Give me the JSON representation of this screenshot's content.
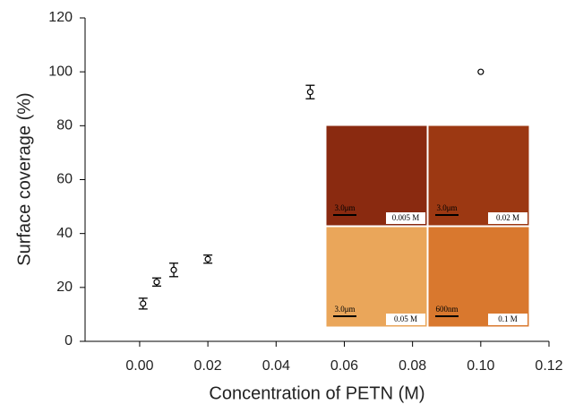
{
  "chart_data": {
    "type": "scatter",
    "xlabel": "Concentration of PETN (M)",
    "ylabel": "Surface coverage (%)",
    "x": [
      0.001,
      0.005,
      0.01,
      0.02,
      0.05,
      0.1
    ],
    "series": [
      {
        "values": [
          14,
          22,
          26.5,
          30.5,
          92.5,
          100
        ],
        "errors": [
          2,
          1.5,
          2.5,
          1.5,
          2.5,
          null
        ],
        "color": "#000000"
      }
    ],
    "xlim": [
      -0.016,
      0.12
    ],
    "ylim": [
      0,
      120
    ],
    "xticks": [
      {
        "value": 0,
        "label": "0.00"
      },
      {
        "value": 0.02,
        "label": "0.02"
      },
      {
        "value": 0.04,
        "label": "0.04"
      },
      {
        "value": 0.06,
        "label": "0.06"
      },
      {
        "value": 0.08,
        "label": "0.08"
      },
      {
        "value": 0.1,
        "label": "0.10"
      },
      {
        "value": 0.12,
        "label": "0.12"
      }
    ],
    "yticks": [
      0,
      20,
      40,
      60,
      80,
      100,
      120
    ]
  },
  "insets": [
    {
      "label": "0.005 M",
      "scale": "3.0μm",
      "color": "#8a2a10"
    },
    {
      "label": "0.02 M",
      "scale": "3.0μm",
      "color": "#9c3812"
    },
    {
      "label": "0.05 M",
      "scale": "3.0μm",
      "color": "#eaa65a"
    },
    {
      "label": "0.1 M",
      "scale": "600nm",
      "color": "#d9782e"
    }
  ]
}
